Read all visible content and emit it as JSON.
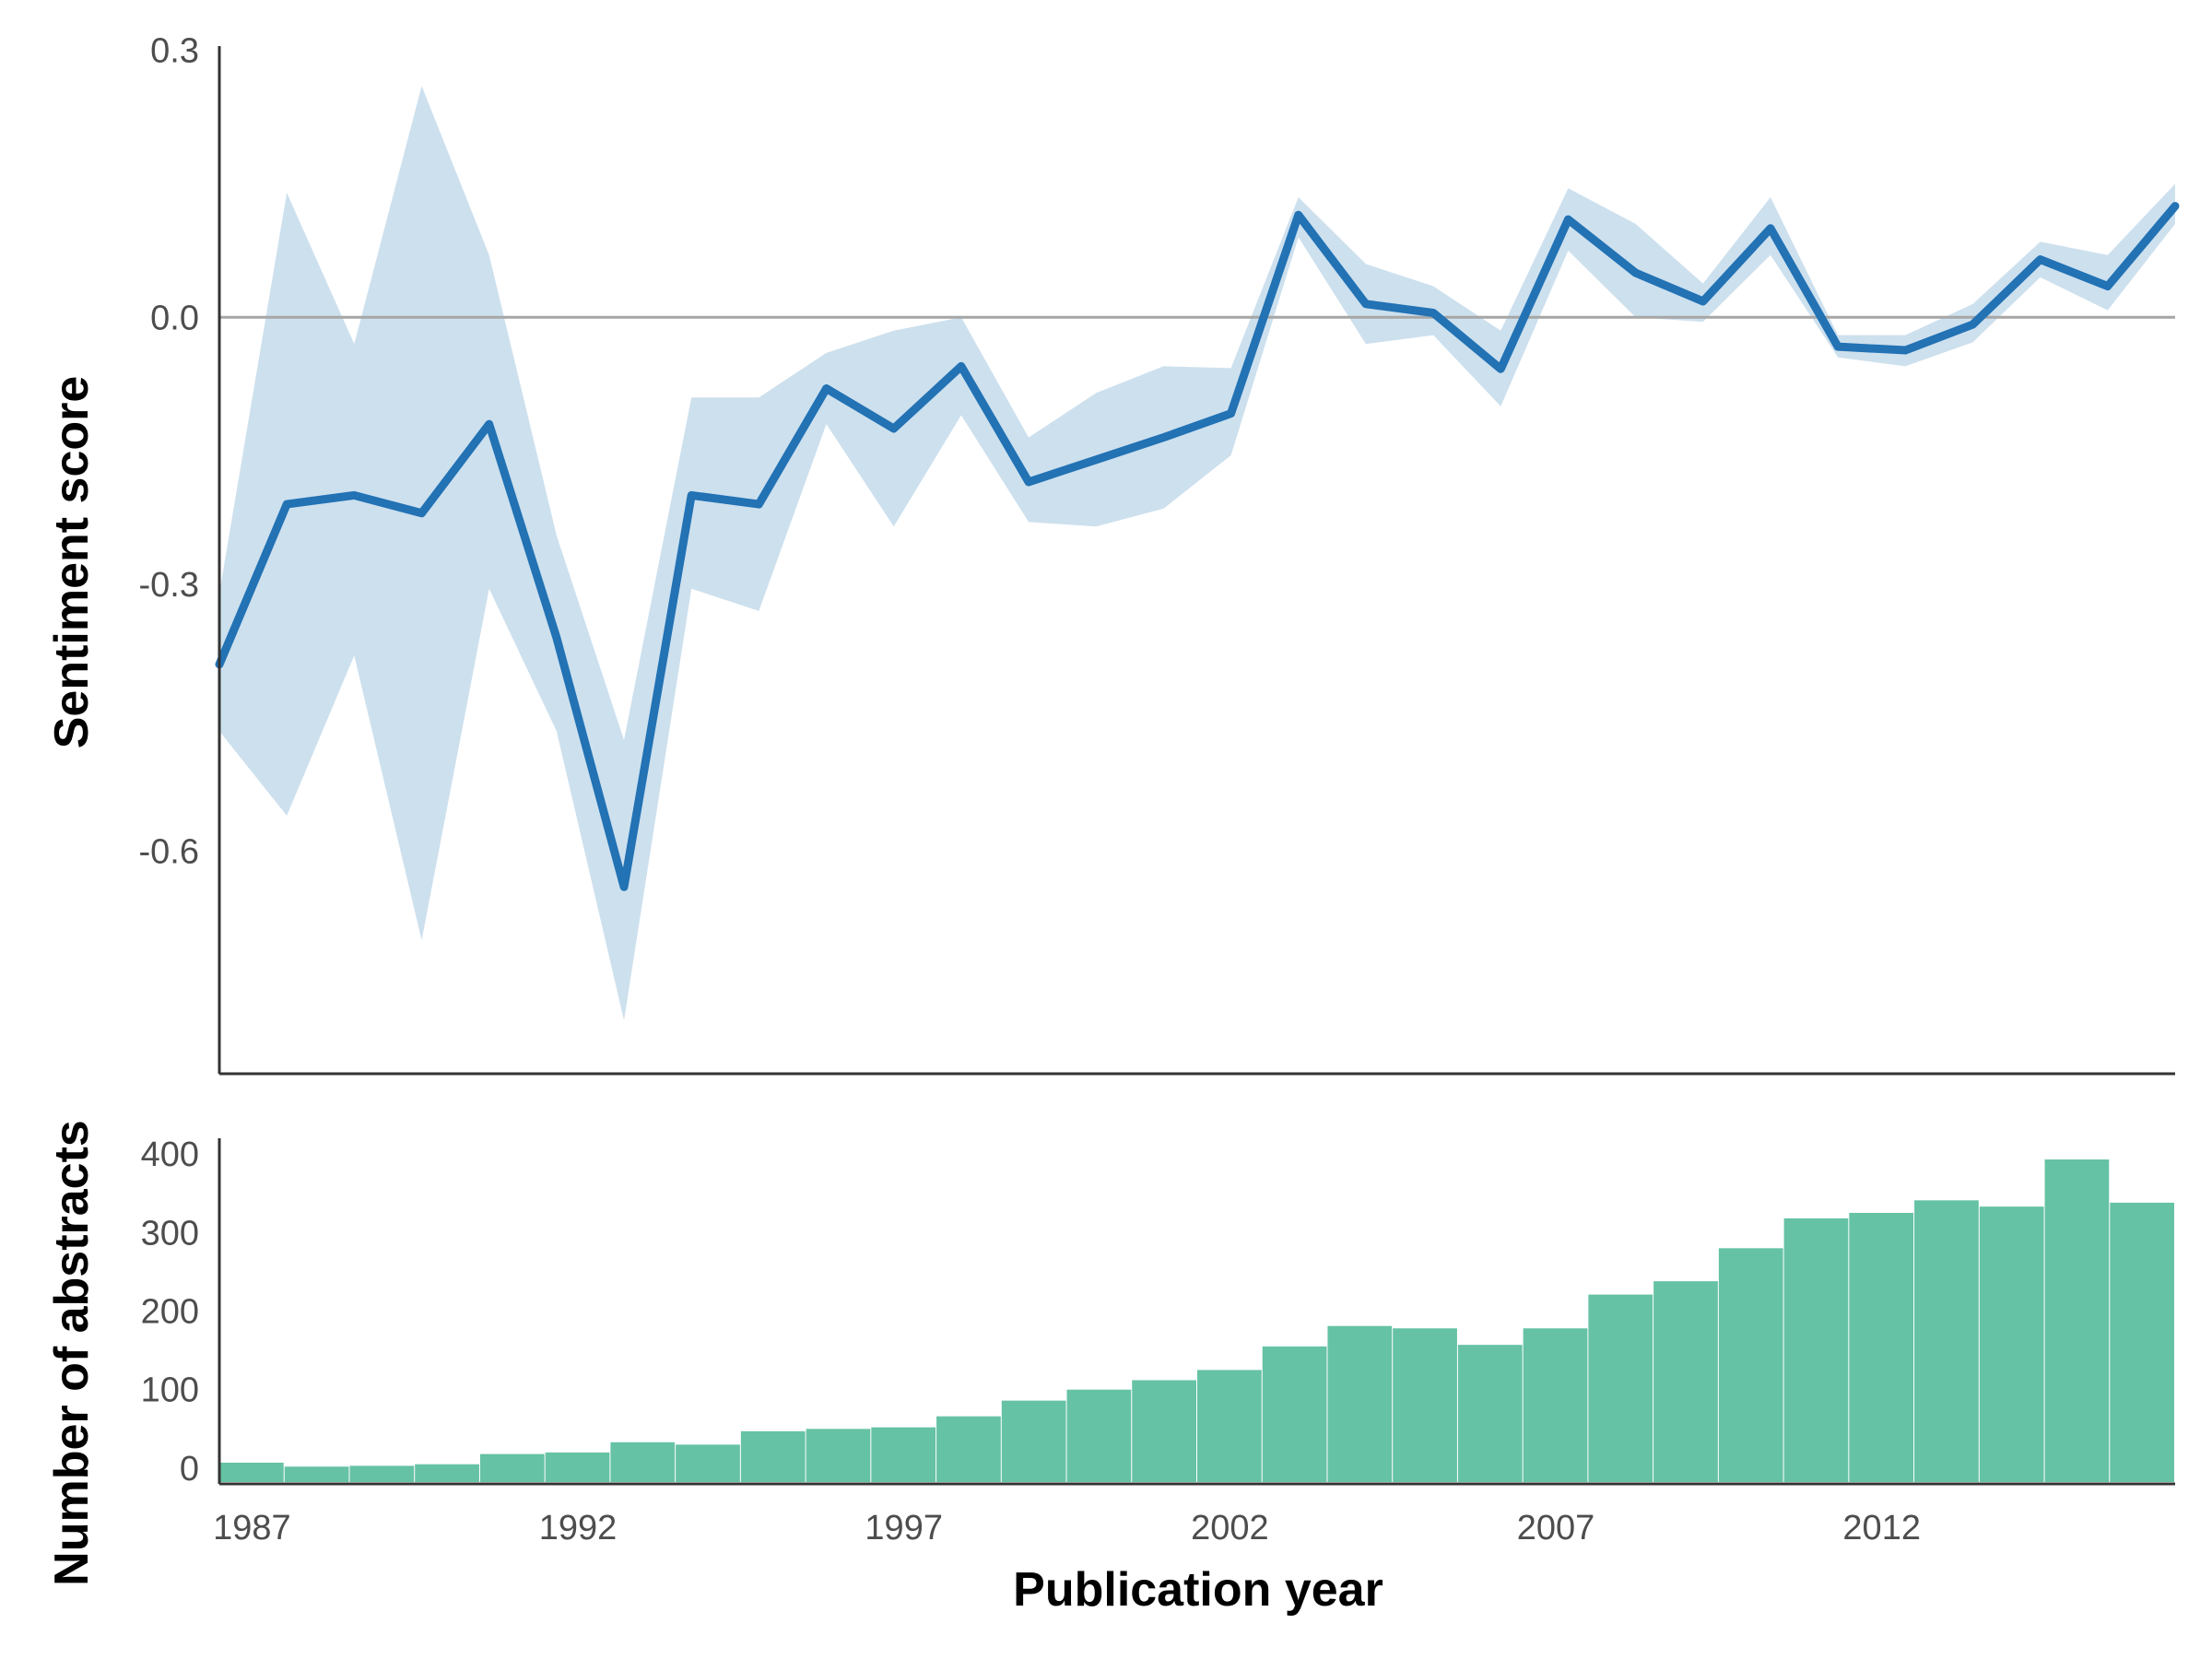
{
  "colors": {
    "line": "#2272b4",
    "band": "#cde0ee",
    "bars": "#66c2a5",
    "zero_line": "#a6a6a6",
    "axis": "#333333",
    "tick_text": "#4d4d4d"
  },
  "chart_data": [
    {
      "type": "line",
      "ylabel": "Sentiment score",
      "ylim": [
        -0.85,
        0.31
      ],
      "yticks": [
        0.3,
        0.0,
        -0.3,
        -0.6
      ],
      "ytick_labels": [
        "0.3",
        "0.0",
        "-0.3",
        "-0.6"
      ],
      "reference_line": 0.0,
      "grid": false,
      "x": [
        1987,
        1988,
        1989,
        1990,
        1991,
        1992,
        1993,
        1994,
        1995,
        1996,
        1997,
        1998,
        1999,
        2000,
        2001,
        2002,
        2003,
        2004,
        2005,
        2006,
        2007,
        2008,
        2009,
        2010,
        2011,
        2012,
        2013,
        2014,
        2015,
        2016
      ],
      "series": [
        {
          "values": [
            -0.39,
            -0.21,
            -0.2,
            -0.22,
            -0.12,
            -0.36,
            -0.64,
            -0.2,
            -0.21,
            -0.08,
            -0.125,
            -0.055,
            -0.185,
            -0.16,
            -0.135,
            -0.108,
            0.115,
            0.015,
            0.005,
            -0.058,
            0.11,
            0.05,
            0.018,
            0.1,
            -0.033,
            -0.037,
            -0.008,
            0.065,
            0.035,
            0.125
          ],
          "lower": [
            -0.465,
            -0.56,
            -0.38,
            -0.7,
            -0.305,
            -0.465,
            -0.79,
            -0.305,
            -0.33,
            -0.12,
            -0.235,
            -0.11,
            -0.23,
            -0.235,
            -0.215,
            -0.155,
            0.09,
            -0.03,
            -0.02,
            -0.1,
            0.075,
            0.0,
            -0.005,
            0.07,
            -0.045,
            -0.055,
            -0.028,
            0.045,
            0.008,
            0.105
          ],
          "upper": [
            -0.31,
            0.14,
            -0.03,
            0.26,
            0.07,
            -0.245,
            -0.475,
            -0.09,
            -0.09,
            -0.04,
            -0.015,
            0.0,
            -0.135,
            -0.085,
            -0.055,
            -0.057,
            0.135,
            0.06,
            0.035,
            -0.015,
            0.145,
            0.105,
            0.038,
            0.135,
            -0.02,
            -0.02,
            0.015,
            0.085,
            0.07,
            0.15
          ]
        }
      ]
    },
    {
      "type": "bar",
      "ylabel": "Number of abstracts",
      "xlabel": "Publication year",
      "ylim": [
        -20,
        420
      ],
      "yticks": [
        0,
        100,
        200,
        300,
        400
      ],
      "ytick_labels": [
        "0",
        "100",
        "200",
        "300",
        "400"
      ],
      "xlim": [
        1986.5,
        2016.5
      ],
      "xticks": [
        1987,
        1992,
        1997,
        2002,
        2007,
        2012
      ],
      "xtick_labels": [
        "1987",
        "1992",
        "1997",
        "2002",
        "2007",
        "2012"
      ],
      "grid": false,
      "categories": [
        1987,
        1988,
        1989,
        1990,
        1991,
        1992,
        1993,
        1994,
        1995,
        1996,
        1997,
        1998,
        1999,
        2000,
        2001,
        2002,
        2003,
        2004,
        2005,
        2006,
        2007,
        2008,
        2009,
        2010,
        2011,
        2012,
        2013,
        2014,
        2015,
        2016
      ],
      "values": [
        7,
        2,
        3,
        5,
        18,
        20,
        33,
        30,
        47,
        50,
        52,
        66,
        86,
        100,
        112,
        125,
        155,
        181,
        178,
        157,
        178,
        221,
        238,
        280,
        318,
        325,
        341,
        333,
        393,
        338
      ]
    }
  ]
}
